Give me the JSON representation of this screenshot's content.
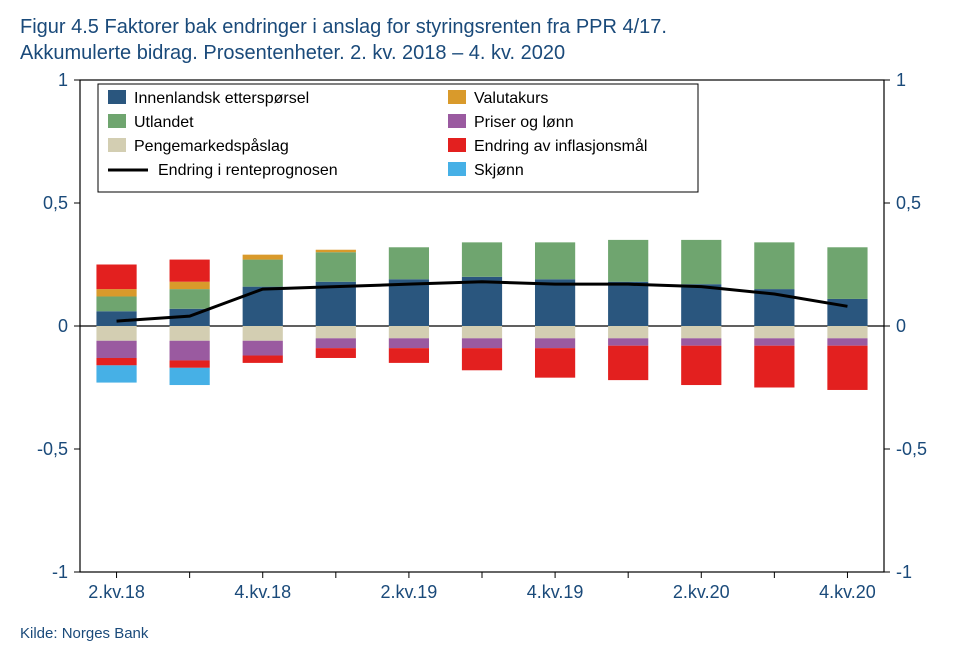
{
  "title_line1": "Figur 4.5 Faktorer bak endringer i anslag for styringsrenten fra PPR 4/17.",
  "title_line2": "Akkumulerte bidrag. Prosentenheter. 2. kv. 2018 – 4. kv. 2020",
  "source": "Kilde: Norges Bank",
  "chart": {
    "type": "stacked-bar-with-line",
    "background_color": "#ffffff",
    "axis_color": "#000000",
    "text_color": "#1a4a7a",
    "title_fontsize": 20,
    "axis_fontsize": 18,
    "legend_fontsize": 16,
    "ylim": [
      -1,
      1
    ],
    "ytick_step": 0.5,
    "ytick_labels": [
      "-1",
      "-0,5",
      "0",
      "0,5",
      "1"
    ],
    "categories": [
      "2.kv.18",
      "3.kv.18",
      "4.kv.18",
      "1.kv.19",
      "2.kv.19",
      "3.kv.19",
      "4.kv.19",
      "1.kv.20",
      "2.kv.20",
      "3.kv.20",
      "4.kv.20"
    ],
    "x_tick_labels": [
      "2.kv.18",
      "",
      "4.kv.18",
      "",
      "2.kv.19",
      "",
      "4.kv.19",
      "",
      "2.kv.20",
      "",
      "4.kv.20"
    ],
    "bar_width": 0.55,
    "series": [
      {
        "key": "innenlandsk",
        "label": "Innenlandsk etterspørsel",
        "color": "#2a567e",
        "values": [
          0.06,
          0.07,
          0.16,
          0.18,
          0.19,
          0.2,
          0.19,
          0.18,
          0.17,
          0.15,
          0.11
        ]
      },
      {
        "key": "utlandet",
        "label": "Utlandet",
        "color": "#6fa56f",
        "values": [
          0.06,
          0.08,
          0.11,
          0.12,
          0.13,
          0.14,
          0.15,
          0.17,
          0.18,
          0.19,
          0.21
        ]
      },
      {
        "key": "pengemarked",
        "label": "Pengemarkedspåslag",
        "color": "#d3ceb2",
        "values": [
          -0.06,
          -0.06,
          -0.06,
          -0.05,
          -0.05,
          -0.05,
          -0.05,
          -0.05,
          -0.05,
          -0.05,
          -0.05
        ]
      },
      {
        "key": "valutakurs",
        "label": "Valutakurs",
        "color": "#d99a2b",
        "values": [
          0.03,
          0.03,
          0.02,
          0.01,
          0.0,
          0.0,
          0.0,
          0.0,
          0.0,
          0.0,
          0.0
        ]
      },
      {
        "key": "priser",
        "label": "Priser og lønn",
        "color": "#9a5aa0",
        "values": [
          -0.07,
          -0.08,
          -0.06,
          -0.04,
          -0.04,
          -0.04,
          -0.04,
          -0.03,
          -0.03,
          -0.03,
          -0.03
        ]
      },
      {
        "key": "inflasjon",
        "label": "Endring av inflasjonsmål",
        "color": "#e3201f",
        "values": [
          -0.03,
          -0.03,
          -0.03,
          -0.04,
          -0.06,
          -0.09,
          -0.12,
          -0.14,
          -0.16,
          -0.17,
          -0.18
        ]
      },
      {
        "key": "skjonn",
        "label": "Skjønn",
        "color": "#46b0e6",
        "values": [
          -0.07,
          -0.07,
          0.0,
          0.0,
          0.0,
          0.0,
          0.0,
          0.0,
          0.0,
          0.0,
          0.0
        ]
      },
      {
        "key": "inflasjon_pos",
        "label": null,
        "color": "#e3201f",
        "values": [
          0.1,
          0.09,
          0.0,
          0.0,
          0.0,
          0.0,
          0.0,
          0.0,
          0.0,
          0.0,
          0.0
        ]
      }
    ],
    "line": {
      "label": "Endring i renteprognosen",
      "color": "#000000",
      "width": 3,
      "values": [
        0.02,
        0.04,
        0.15,
        0.16,
        0.17,
        0.18,
        0.17,
        0.17,
        0.16,
        0.13,
        0.08
      ]
    },
    "legend": {
      "box_stroke": "#000000",
      "box_fill": "#ffffff",
      "position": "top-inside",
      "columns": 2,
      "line_marker_width": 40,
      "entries_col1": [
        {
          "series": "innenlandsk",
          "type": "box"
        },
        {
          "series": "utlandet",
          "type": "box"
        },
        {
          "series": "pengemarked",
          "type": "box"
        },
        {
          "type": "line"
        }
      ],
      "entries_col2": [
        {
          "series": "valutakurs",
          "type": "box"
        },
        {
          "series": "priser",
          "type": "box"
        },
        {
          "series": "inflasjon",
          "type": "box"
        },
        {
          "series": "skjonn",
          "type": "box"
        }
      ]
    }
  }
}
